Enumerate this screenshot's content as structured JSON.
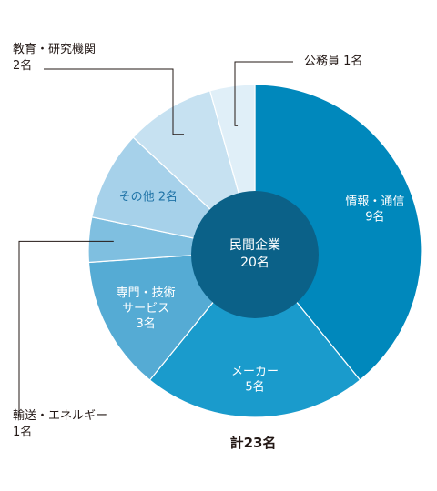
{
  "chart_data": {
    "type": "pie",
    "unit": "名",
    "slices": [
      {
        "name": "情報・通信",
        "value": 9,
        "value_label": "9名",
        "color": "#0088bc",
        "text_color": "#ffffff",
        "group": "民間企業"
      },
      {
        "name": "メーカー",
        "value": 5,
        "value_label": "5名",
        "color": "#1a9bcc",
        "text_color": "#ffffff",
        "group": "民間企業"
      },
      {
        "name": "専門・技術サービス",
        "name_lines": [
          "専門・技術",
          "サービス"
        ],
        "value": 3,
        "value_label": "3名",
        "color": "#55abd4",
        "text_color": "#ffffff",
        "group": "民間企業"
      },
      {
        "name": "輸送・エネルギー",
        "value": 1,
        "value_label": "1名",
        "color": "#7fbfe0",
        "text_color": "#231815",
        "group": "民間企業"
      },
      {
        "name": "その他",
        "value": 2,
        "value_label": "2名",
        "color": "#a6d1ea",
        "text_color": "#1d72a6",
        "group": "民間企業"
      },
      {
        "name": "教育・研究機関",
        "value": 2,
        "value_label": "2名",
        "color": "#c6e1f1",
        "text_color": "#231815"
      },
      {
        "name": "公務員",
        "value": 1,
        "value_label": "1名",
        "color": "#e0eff8",
        "text_color": "#231815"
      }
    ],
    "center": {
      "lines": [
        "民間企業",
        "20名"
      ],
      "value": 20,
      "color": "#0b6188"
    },
    "total_label": "計23名",
    "total": 23
  }
}
